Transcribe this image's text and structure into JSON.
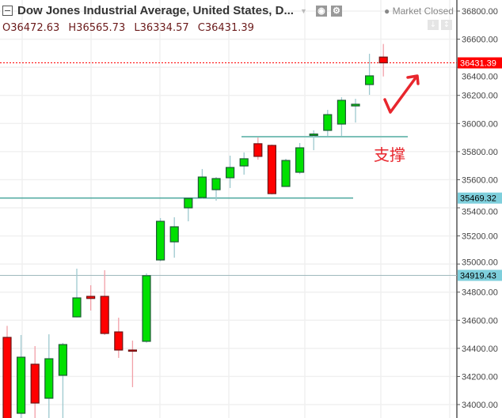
{
  "header": {
    "title": "Dow Jones Industrial Average, United States, D...",
    "status": "Market Closed",
    "ohlc": {
      "open": "O36472.63",
      "high": "H36565.73",
      "low": "L36334.57",
      "close": "C36431.39"
    }
  },
  "annotation": {
    "label": "支撑",
    "color": "#e8262d"
  },
  "colors": {
    "up": "#00e000",
    "down": "#ff0000",
    "up_border": "#1e5a36",
    "down_border": "#6e1515",
    "up_wick": "#9ec9cf",
    "down_wick": "#f2a0a8",
    "line": "#5fb3ac",
    "price_tag": "#7ecfdc"
  },
  "chart_data": {
    "type": "candlestick",
    "title": "Dow Jones Industrial Average, United States, D",
    "ylim": [
      33930,
      36820
    ],
    "yticks": [
      "34000.00",
      "34200.00",
      "34400.00",
      "34600.00",
      "34800.00",
      "35000.00",
      "35200.00",
      "35400.00",
      "35600.00",
      "35800.00",
      "36000.00",
      "36200.00",
      "36400.00",
      "36600.00",
      "36800.00"
    ],
    "grid": true,
    "candles": [
      {
        "o": 34478,
        "h": 34560,
        "l": 33850,
        "c": 33880
      },
      {
        "o": 33938,
        "h": 34495,
        "l": 33850,
        "c": 34337
      },
      {
        "o": 34287,
        "h": 34416,
        "l": 33880,
        "c": 34011
      },
      {
        "o": 34045,
        "h": 34500,
        "l": 33900,
        "c": 34326
      },
      {
        "o": 34208,
        "h": 34439,
        "l": 33900,
        "c": 34427
      },
      {
        "o": 34624,
        "h": 34967,
        "l": 34620,
        "c": 34759
      },
      {
        "o": 34770,
        "h": 34849,
        "l": 34669,
        "c": 34755
      },
      {
        "o": 34770,
        "h": 34956,
        "l": 34495,
        "c": 34506
      },
      {
        "o": 34517,
        "h": 34618,
        "l": 34332,
        "c": 34388
      },
      {
        "o": 34388,
        "h": 34455,
        "l": 34124,
        "c": 34383
      },
      {
        "o": 34450,
        "h": 34933,
        "l": 34440,
        "c": 34917
      },
      {
        "o": 35029,
        "h": 35327,
        "l": 35020,
        "c": 35304
      },
      {
        "o": 35158,
        "h": 35333,
        "l": 35045,
        "c": 35265
      },
      {
        "o": 35400,
        "h": 35470,
        "l": 35304,
        "c": 35467
      },
      {
        "o": 35473,
        "h": 35676,
        "l": 35465,
        "c": 35619
      },
      {
        "o": 35529,
        "h": 35619,
        "l": 35451,
        "c": 35608
      },
      {
        "o": 35614,
        "h": 35771,
        "l": 35541,
        "c": 35687
      },
      {
        "o": 35698,
        "h": 35794,
        "l": 35636,
        "c": 35749
      },
      {
        "o": 35856,
        "h": 35900,
        "l": 35743,
        "c": 35766
      },
      {
        "o": 35844,
        "h": 35850,
        "l": 35495,
        "c": 35501
      },
      {
        "o": 35552,
        "h": 35749,
        "l": 35552,
        "c": 35737
      },
      {
        "o": 35653,
        "h": 35861,
        "l": 35640,
        "c": 35827
      },
      {
        "o": 35915,
        "h": 35951,
        "l": 35810,
        "c": 35925
      },
      {
        "o": 35951,
        "h": 36097,
        "l": 35912,
        "c": 36063
      },
      {
        "o": 35996,
        "h": 36187,
        "l": 35912,
        "c": 36165
      },
      {
        "o": 36125,
        "h": 36176,
        "l": 36007,
        "c": 36137
      },
      {
        "o": 36277,
        "h": 36496,
        "l": 36204,
        "c": 36339
      },
      {
        "o": 36472.63,
        "h": 36565.73,
        "l": 36334.57,
        "c": 36431.39
      }
    ],
    "horizontal_lines": [
      {
        "value": 35469.32,
        "label": "35469.32"
      },
      {
        "value": 34919.43,
        "label": "34919.43"
      }
    ],
    "support_line": {
      "value": 35906
    },
    "last_price": {
      "value": 36431.39,
      "label": "36431.39"
    }
  }
}
